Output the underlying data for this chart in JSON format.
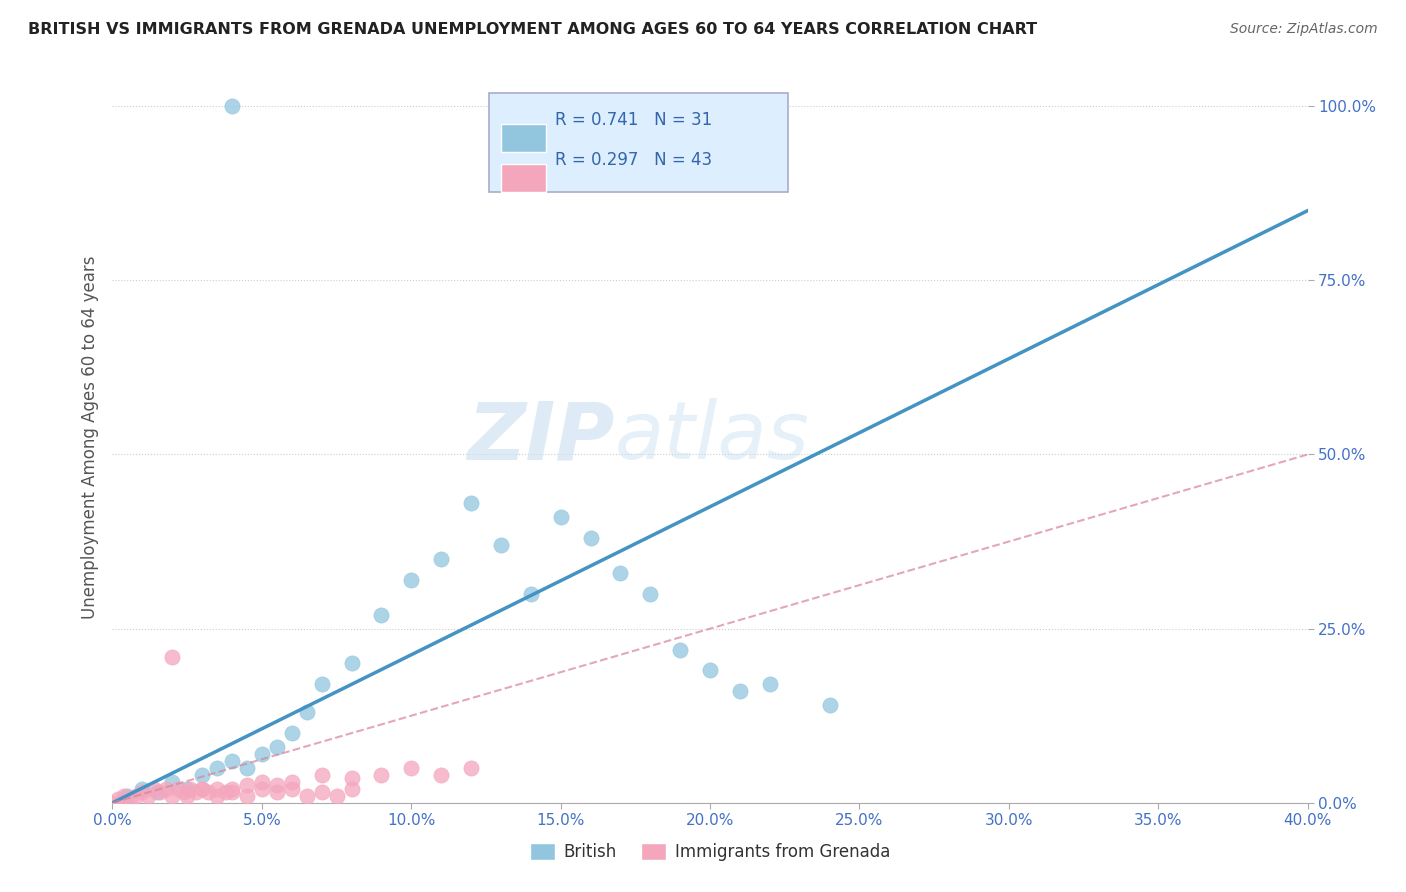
{
  "title": "BRITISH VS IMMIGRANTS FROM GRENADA UNEMPLOYMENT AMONG AGES 60 TO 64 YEARS CORRELATION CHART",
  "source": "Source: ZipAtlas.com",
  "ylabel": "Unemployment Among Ages 60 to 64 years",
  "xlim": [
    0.0,
    0.4
  ],
  "ylim": [
    0.0,
    1.05
  ],
  "british_R": 0.741,
  "british_N": 31,
  "grenada_R": 0.297,
  "grenada_N": 43,
  "british_color": "#92c5de",
  "grenada_color": "#f4a6bd",
  "british_line_color": "#4393c3",
  "grenada_line_color": "#d6849a",
  "watermark_zip": "ZIP",
  "watermark_atlas": "atlas",
  "british_x": [
    0.005,
    0.01,
    0.015,
    0.02,
    0.025,
    0.03,
    0.035,
    0.04,
    0.045,
    0.05,
    0.055,
    0.06,
    0.065,
    0.07,
    0.08,
    0.09,
    0.1,
    0.11,
    0.12,
    0.13,
    0.14,
    0.15,
    0.16,
    0.17,
    0.18,
    0.19,
    0.2,
    0.21,
    0.22,
    0.24,
    0.04
  ],
  "british_y": [
    0.01,
    0.02,
    0.015,
    0.03,
    0.02,
    0.04,
    0.05,
    0.06,
    0.05,
    0.07,
    0.08,
    0.1,
    0.13,
    0.17,
    0.2,
    0.27,
    0.32,
    0.35,
    0.43,
    0.37,
    0.3,
    0.41,
    0.38,
    0.33,
    0.3,
    0.22,
    0.19,
    0.16,
    0.17,
    0.14,
    1.0
  ],
  "grenada_x": [
    0.0,
    0.002,
    0.004,
    0.006,
    0.008,
    0.01,
    0.012,
    0.014,
    0.016,
    0.018,
    0.02,
    0.022,
    0.024,
    0.026,
    0.028,
    0.03,
    0.032,
    0.035,
    0.038,
    0.04,
    0.045,
    0.05,
    0.055,
    0.06,
    0.07,
    0.08,
    0.09,
    0.1,
    0.11,
    0.12,
    0.02,
    0.025,
    0.03,
    0.035,
    0.04,
    0.045,
    0.05,
    0.055,
    0.06,
    0.065,
    0.07,
    0.075,
    0.08
  ],
  "grenada_y": [
    0.0,
    0.005,
    0.01,
    0.005,
    0.01,
    0.015,
    0.01,
    0.02,
    0.015,
    0.02,
    0.01,
    0.02,
    0.015,
    0.02,
    0.015,
    0.02,
    0.015,
    0.02,
    0.015,
    0.02,
    0.025,
    0.03,
    0.025,
    0.03,
    0.04,
    0.035,
    0.04,
    0.05,
    0.04,
    0.05,
    0.21,
    0.01,
    0.02,
    0.01,
    0.015,
    0.01,
    0.02,
    0.015,
    0.02,
    0.01,
    0.015,
    0.01,
    0.02
  ]
}
